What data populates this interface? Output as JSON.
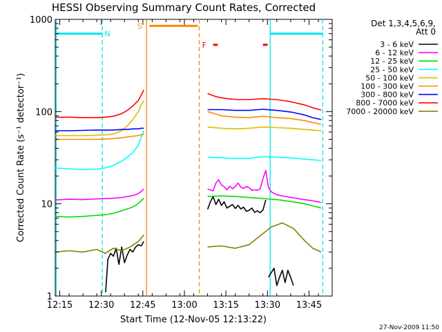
{
  "chart_data": {
    "type": "line",
    "title": "HESSI Observing Summary Count Rates, Corrected",
    "xlabel": "Start Time (12-Nov-05 12:13:22)",
    "ylabel": "Corrected Count Rate (s⁻¹ detector⁻¹)",
    "x_unit": "minutes after 12:13:22",
    "xlim": [
      0,
      100
    ],
    "ylim": [
      1,
      1000
    ],
    "yscale": "log",
    "x_ticks": [
      {
        "x": 1.63,
        "label": "12:15"
      },
      {
        "x": 16.63,
        "label": "12:30"
      },
      {
        "x": 31.63,
        "label": "12:45"
      },
      {
        "x": 46.63,
        "label": "13:00"
      },
      {
        "x": 61.63,
        "label": "13:15"
      },
      {
        "x": 76.63,
        "label": "13:30"
      },
      {
        "x": 91.63,
        "label": "13:45"
      }
    ],
    "y_ticks": [
      {
        "y": 1,
        "label": "1"
      },
      {
        "y": 10,
        "label": "10"
      },
      {
        "y": 100,
        "label": "100"
      },
      {
        "y": 1000,
        "label": "1000"
      }
    ],
    "legend": {
      "position": "right",
      "header": [
        "Det 1,3,4,5,6,9,",
        "Att 0"
      ]
    },
    "series": [
      {
        "name": "3 - 6 keV",
        "color": "#000000",
        "points": [
          [
            18.2,
            1.1
          ],
          [
            19,
            2.5
          ],
          [
            20,
            2.9
          ],
          [
            21,
            2.7
          ],
          [
            22,
            3.3
          ],
          [
            23,
            2.2
          ],
          [
            24,
            3.4
          ],
          [
            25,
            2.3
          ],
          [
            26,
            2.8
          ],
          [
            27,
            3.2
          ],
          [
            28,
            3.0
          ],
          [
            29,
            3.4
          ],
          [
            30,
            3.6
          ],
          [
            31,
            3.5
          ],
          [
            32,
            3.9
          ],
          [
            null,
            null
          ],
          [
            55,
            8.7
          ],
          [
            56,
            10.5
          ],
          [
            57,
            12.0
          ],
          [
            58,
            9.8
          ],
          [
            59,
            11.2
          ],
          [
            60,
            9.6
          ],
          [
            61,
            10.5
          ],
          [
            62,
            9.0
          ],
          [
            63,
            9.4
          ],
          [
            64,
            9.8
          ],
          [
            65,
            8.9
          ],
          [
            66,
            9.6
          ],
          [
            67,
            8.8
          ],
          [
            68,
            9.2
          ],
          [
            69,
            8.3
          ],
          [
            70,
            8.5
          ],
          [
            71,
            9.0
          ],
          [
            72,
            8.1
          ],
          [
            73,
            8.4
          ],
          [
            74,
            8.0
          ],
          [
            75,
            8.6
          ],
          [
            76,
            11.0
          ],
          [
            null,
            null
          ],
          [
            77,
            1.6
          ],
          [
            78,
            1.8
          ],
          [
            79,
            2.0
          ],
          [
            80,
            1.3
          ],
          [
            81,
            1.6
          ],
          [
            82,
            1.9
          ],
          [
            83,
            1.4
          ],
          [
            84,
            1.9
          ],
          [
            85,
            1.6
          ],
          [
            86,
            1.3
          ]
        ]
      },
      {
        "name": "6 - 12 keV",
        "color": "#ff00ff",
        "points": [
          [
            0,
            11
          ],
          [
            5,
            11.2
          ],
          [
            10,
            11.1
          ],
          [
            15,
            11.3
          ],
          [
            18,
            11.4
          ],
          [
            21,
            11.5
          ],
          [
            24,
            11.7
          ],
          [
            27,
            12.1
          ],
          [
            29,
            12.5
          ],
          [
            30,
            12.9
          ],
          [
            31,
            13.6
          ],
          [
            32,
            14.5
          ],
          [
            null,
            null
          ],
          [
            55,
            14.5
          ],
          [
            57,
            13.8
          ],
          [
            58,
            16.8
          ],
          [
            59,
            18.2
          ],
          [
            60,
            16.0
          ],
          [
            61,
            15.3
          ],
          [
            62,
            14.2
          ],
          [
            63,
            15.5
          ],
          [
            64,
            14.6
          ],
          [
            65,
            15.4
          ],
          [
            66,
            16.8
          ],
          [
            67,
            15.2
          ],
          [
            68,
            14.7
          ],
          [
            69,
            15.4
          ],
          [
            70,
            15.0
          ],
          [
            71,
            14.0
          ],
          [
            72,
            14.2
          ],
          [
            73,
            14.0
          ],
          [
            74,
            14.6
          ],
          [
            75,
            18.8
          ],
          [
            76,
            23
          ],
          [
            77,
            15
          ],
          [
            78,
            13.5
          ],
          [
            80,
            12.5
          ],
          [
            83,
            12.0
          ],
          [
            86,
            11.6
          ],
          [
            89,
            11.2
          ],
          [
            92,
            10.9
          ],
          [
            95,
            10.5
          ],
          [
            96,
            10.3
          ]
        ]
      },
      {
        "name": "12 - 25 keV",
        "color": "#00dd00",
        "points": [
          [
            0,
            7.3
          ],
          [
            5,
            7.2
          ],
          [
            10,
            7.3
          ],
          [
            15,
            7.5
          ],
          [
            18,
            7.6
          ],
          [
            21,
            7.9
          ],
          [
            24,
            8.4
          ],
          [
            27,
            9.0
          ],
          [
            29,
            9.6
          ],
          [
            30,
            10.1
          ],
          [
            31,
            10.8
          ],
          [
            32,
            11.5
          ],
          [
            null,
            null
          ],
          [
            55,
            12.0
          ],
          [
            60,
            12.2
          ],
          [
            65,
            12.0
          ],
          [
            70,
            11.7
          ],
          [
            75,
            11.4
          ],
          [
            80,
            11.1
          ],
          [
            85,
            10.6
          ],
          [
            90,
            10.0
          ],
          [
            93,
            9.5
          ],
          [
            96,
            9.0
          ]
        ]
      },
      {
        "name": "25 - 50 keV",
        "color": "#00ffff",
        "points": [
          [
            0,
            24.5
          ],
          [
            5,
            24
          ],
          [
            10,
            23.5
          ],
          [
            15,
            23.8
          ],
          [
            18,
            24.5
          ],
          [
            21,
            26
          ],
          [
            24,
            29
          ],
          [
            26,
            32
          ],
          [
            28,
            36
          ],
          [
            30,
            43
          ],
          [
            31,
            52
          ],
          [
            32,
            62
          ],
          [
            null,
            null
          ],
          [
            55,
            32
          ],
          [
            60,
            31.5
          ],
          [
            65,
            31
          ],
          [
            70,
            31.2
          ],
          [
            75,
            32.5
          ],
          [
            80,
            32
          ],
          [
            85,
            31.5
          ],
          [
            90,
            30.5
          ],
          [
            93,
            30
          ],
          [
            96,
            29.5
          ]
        ]
      },
      {
        "name": "50 - 100 keV",
        "color": "#ddbb00",
        "points": [
          [
            0,
            55
          ],
          [
            5,
            55
          ],
          [
            10,
            55
          ],
          [
            15,
            55.5
          ],
          [
            18,
            56
          ],
          [
            21,
            57
          ],
          [
            24,
            62
          ],
          [
            26,
            70
          ],
          [
            28,
            82
          ],
          [
            30,
            100
          ],
          [
            31,
            118
          ],
          [
            32,
            132
          ],
          [
            null,
            null
          ],
          [
            55,
            68
          ],
          [
            60,
            66
          ],
          [
            65,
            65
          ],
          [
            70,
            66
          ],
          [
            75,
            68
          ],
          [
            80,
            67
          ],
          [
            85,
            66
          ],
          [
            90,
            64
          ],
          [
            93,
            63
          ],
          [
            96,
            62
          ]
        ]
      },
      {
        "name": "100 - 300 keV",
        "color": "#ff8800",
        "points": [
          [
            0,
            50
          ],
          [
            5,
            50
          ],
          [
            10,
            50
          ],
          [
            15,
            50
          ],
          [
            18,
            50.5
          ],
          [
            21,
            51
          ],
          [
            24,
            52
          ],
          [
            26,
            53
          ],
          [
            28,
            54
          ],
          [
            30,
            55
          ],
          [
            31,
            56
          ],
          [
            32,
            57
          ],
          [
            null,
            null
          ],
          [
            55,
            100
          ],
          [
            60,
            90
          ],
          [
            65,
            87
          ],
          [
            70,
            86
          ],
          [
            75,
            89
          ],
          [
            80,
            86
          ],
          [
            85,
            84
          ],
          [
            90,
            80
          ],
          [
            93,
            76
          ],
          [
            96,
            73
          ]
        ]
      },
      {
        "name": "300 - 800 keV",
        "color": "#0000ff",
        "points": [
          [
            0,
            62
          ],
          [
            5,
            62
          ],
          [
            10,
            62.5
          ],
          [
            15,
            63
          ],
          [
            18,
            63
          ],
          [
            21,
            63
          ],
          [
            24,
            64
          ],
          [
            26,
            64
          ],
          [
            28,
            65
          ],
          [
            30,
            65
          ],
          [
            31,
            66
          ],
          [
            32,
            66
          ],
          [
            null,
            null
          ],
          [
            55,
            105
          ],
          [
            60,
            105
          ],
          [
            65,
            103
          ],
          [
            70,
            103
          ],
          [
            75,
            106
          ],
          [
            80,
            103
          ],
          [
            85,
            99
          ],
          [
            90,
            92
          ],
          [
            93,
            86
          ],
          [
            96,
            82
          ]
        ]
      },
      {
        "name": "800 - 7000 keV",
        "color": "#ff0000",
        "points": [
          [
            0,
            87
          ],
          [
            5,
            87
          ],
          [
            10,
            86
          ],
          [
            15,
            86
          ],
          [
            18,
            87
          ],
          [
            21,
            89
          ],
          [
            24,
            95
          ],
          [
            26,
            103
          ],
          [
            28,
            115
          ],
          [
            30,
            132
          ],
          [
            31,
            150
          ],
          [
            32,
            172
          ],
          [
            null,
            null
          ],
          [
            55,
            157
          ],
          [
            58,
            145
          ],
          [
            62,
            138
          ],
          [
            66,
            135
          ],
          [
            70,
            135
          ],
          [
            75,
            138
          ],
          [
            80,
            135
          ],
          [
            85,
            128
          ],
          [
            90,
            118
          ],
          [
            93,
            110
          ],
          [
            96,
            104
          ]
        ]
      },
      {
        "name": "7000 - 20000 keV",
        "color": "#808000",
        "points": [
          [
            0,
            3.0
          ],
          [
            5,
            3.1
          ],
          [
            10,
            3.0
          ],
          [
            15,
            3.2
          ],
          [
            18,
            2.9
          ],
          [
            21,
            3.3
          ],
          [
            24,
            3.1
          ],
          [
            27,
            3.4
          ],
          [
            30,
            3.9
          ],
          [
            32,
            4.6
          ],
          [
            null,
            null
          ],
          [
            55,
            3.4
          ],
          [
            60,
            3.5
          ],
          [
            65,
            3.3
          ],
          [
            70,
            3.6
          ],
          [
            74,
            4.5
          ],
          [
            78,
            5.6
          ],
          [
            82,
            6.2
          ],
          [
            86,
            5.4
          ],
          [
            90,
            4.0
          ],
          [
            93,
            3.3
          ],
          [
            96,
            3.0
          ]
        ]
      }
    ],
    "verticals": [
      {
        "x": 0.35,
        "color": "#00e5ee",
        "style": "solid"
      },
      {
        "x": 17.0,
        "color": "#00e5ee",
        "style": "dashed"
      },
      {
        "x": 33.0,
        "color": "#ff8800",
        "style": "solid"
      },
      {
        "x": 52.0,
        "color": "#ff8800",
        "style": "dashed"
      },
      {
        "x": 77.6,
        "color": "#00e5ee",
        "style": "solid"
      },
      {
        "x": 96.6,
        "color": "#00e5ee",
        "style": "dashed"
      }
    ],
    "flags": [
      {
        "x1": 0.35,
        "x2": 17.0,
        "y": 700,
        "color": "#00e5ee",
        "label": "N",
        "label_x": 18.8
      },
      {
        "x1": 77.6,
        "x2": 96.6,
        "y": 700,
        "color": "#00e5ee",
        "label": "",
        "label_x": 0
      },
      {
        "x1": 34.0,
        "x2": 51.5,
        "y": 850,
        "color": "#ff8800",
        "label": "S",
        "label_x": 30.5
      },
      {
        "x1": 57.0,
        "x2": 58.7,
        "y": 530,
        "color": "#ff0000",
        "label": "F",
        "label_x": 53.8
      },
      {
        "x1": 75.0,
        "x2": 76.7,
        "y": 530,
        "color": "#ff0000",
        "label": "",
        "label_x": 0
      }
    ],
    "timestamp": "27-Nov-2009 11:50"
  }
}
